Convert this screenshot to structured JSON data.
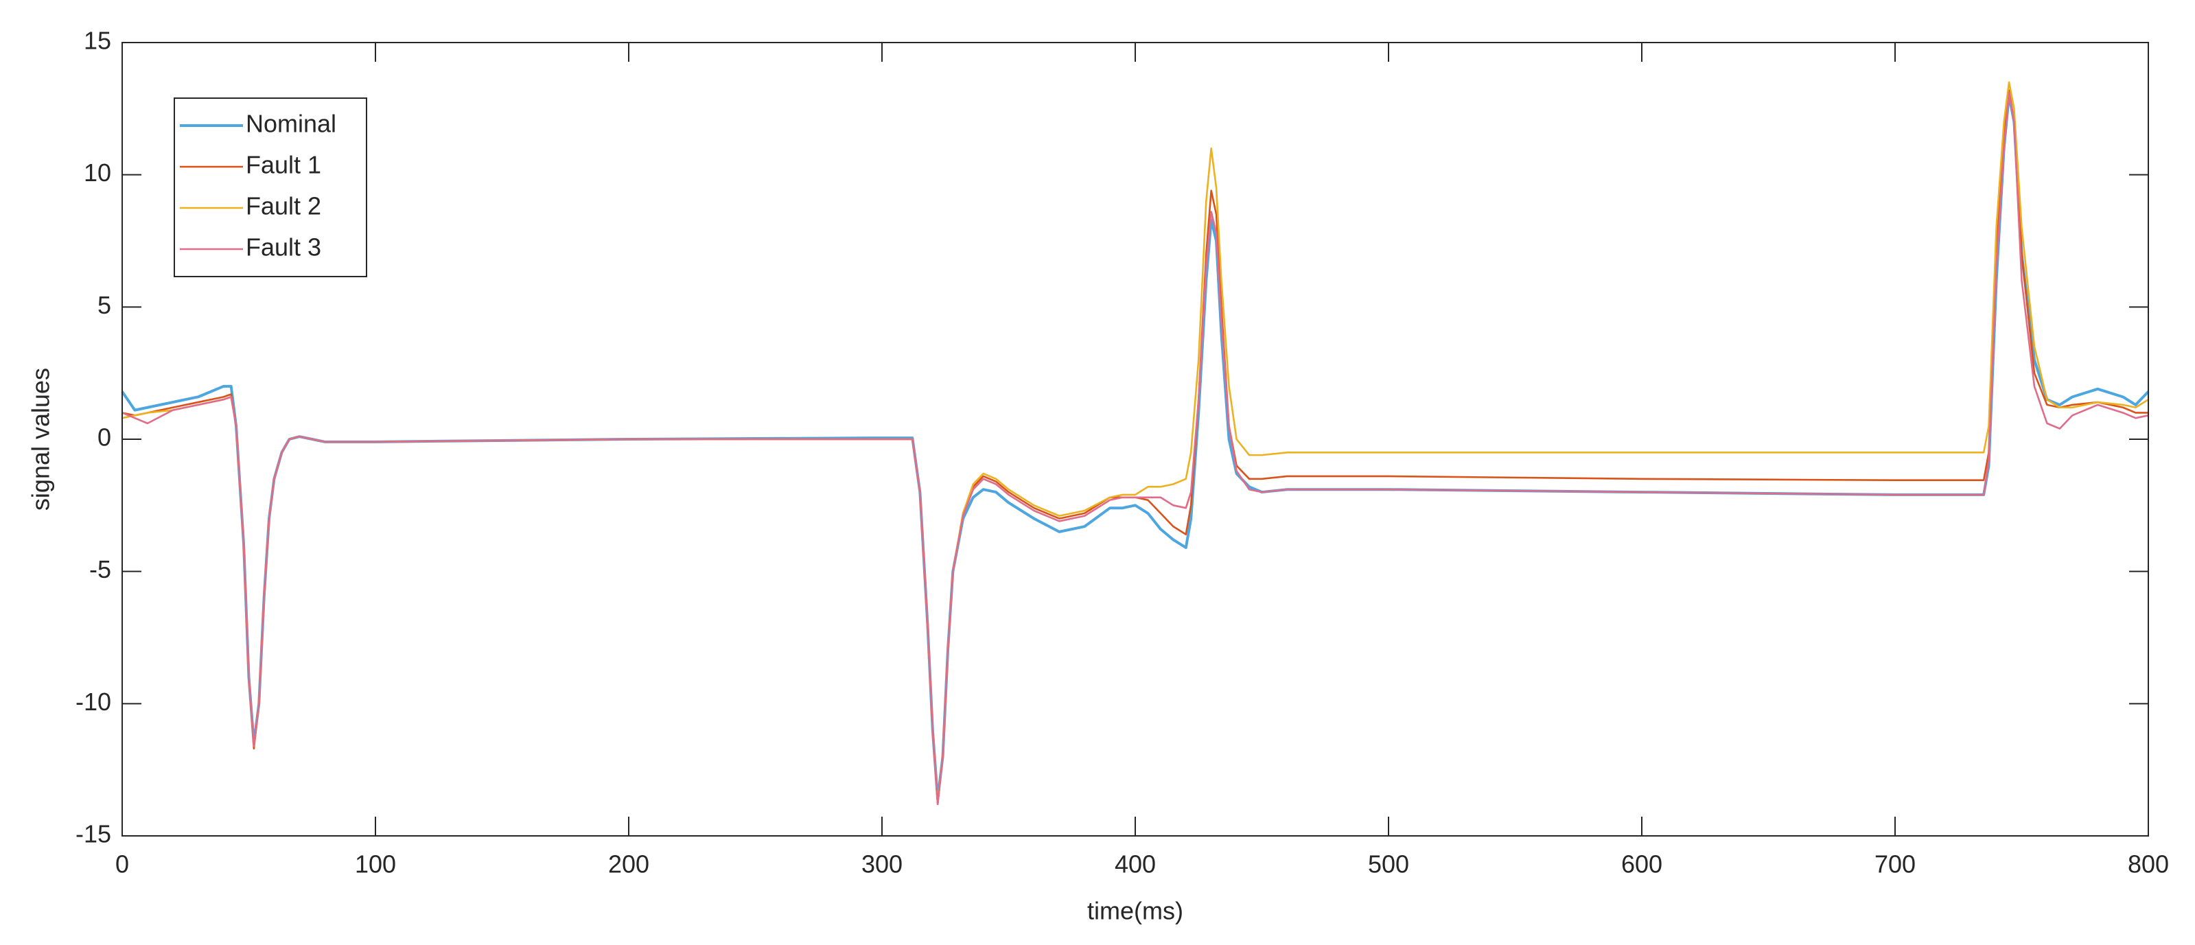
{
  "chart_data": {
    "type": "line",
    "xlabel": "time(ms)",
    "ylabel": "signal values",
    "x": [
      0,
      5,
      10,
      20,
      30,
      40,
      43,
      45,
      48,
      50,
      52,
      54,
      56,
      58,
      60,
      63,
      66,
      70,
      75,
      80,
      100,
      200,
      300,
      312,
      315,
      318,
      320,
      322,
      324,
      326,
      328,
      332,
      336,
      340,
      345,
      350,
      360,
      370,
      380,
      390,
      395,
      400,
      405,
      410,
      415,
      420,
      422,
      425,
      428,
      430,
      432,
      434,
      437,
      440,
      445,
      450,
      460,
      500,
      600,
      700,
      735,
      737,
      740,
      743,
      745,
      747,
      750,
      755,
      760,
      765,
      770,
      780,
      790,
      795,
      800
    ],
    "series": [
      {
        "name": "Nominal",
        "color": "#4da6e0",
        "values": [
          1.8,
          1.1,
          1.2,
          1.4,
          1.6,
          2.0,
          2.0,
          0.5,
          -4,
          -9,
          -11.5,
          -10,
          -6,
          -3,
          -1.5,
          -0.5,
          0,
          0.1,
          0,
          -0.1,
          -0.1,
          0,
          0.05,
          0.05,
          -2,
          -7,
          -11,
          -13.6,
          -12,
          -8,
          -5,
          -3,
          -2.2,
          -1.9,
          -2,
          -2.4,
          -3,
          -3.5,
          -3.3,
          -2.6,
          -2.6,
          -2.5,
          -2.8,
          -3.4,
          -3.8,
          -4.1,
          -3,
          1,
          6,
          8.3,
          7.5,
          4,
          0,
          -1.3,
          -1.8,
          -2.0,
          -1.9,
          -1.9,
          -2.0,
          -2.1,
          -2.1,
          -1,
          6,
          11,
          13,
          12,
          7,
          3,
          1.5,
          1.3,
          1.6,
          1.9,
          1.6,
          1.3,
          1.8
        ]
      },
      {
        "name": "Fault 1",
        "color": "#d95319",
        "values": [
          1.0,
          0.9,
          1.0,
          1.2,
          1.4,
          1.6,
          1.7,
          0.5,
          -4,
          -9,
          -11.7,
          -10,
          -6,
          -3,
          -1.5,
          -0.5,
          0,
          0.1,
          0,
          -0.1,
          -0.1,
          0,
          0,
          0,
          -2,
          -7,
          -11,
          -13.8,
          -12,
          -8,
          -5,
          -2.8,
          -1.8,
          -1.4,
          -1.6,
          -2.0,
          -2.6,
          -3.0,
          -2.8,
          -2.2,
          -2.2,
          -2.2,
          -2.3,
          -2.8,
          -3.3,
          -3.6,
          -2.5,
          1.5,
          7,
          9.4,
          8.5,
          5,
          0.5,
          -1,
          -1.5,
          -1.5,
          -1.4,
          -1.4,
          -1.5,
          -1.55,
          -1.55,
          -0.5,
          7,
          11.5,
          13.2,
          12,
          7,
          2.5,
          1.3,
          1.2,
          1.3,
          1.4,
          1.2,
          1.0,
          1.0
        ]
      },
      {
        "name": "Fault 2",
        "color": "#edb120",
        "values": [
          0.8,
          0.9,
          1.0,
          1.1,
          1.3,
          1.5,
          1.6,
          0.5,
          -4,
          -9,
          -11.6,
          -10,
          -6,
          -3,
          -1.5,
          -0.5,
          0,
          0.1,
          0,
          -0.1,
          -0.1,
          0,
          0,
          0,
          -2,
          -7,
          -11,
          -13.7,
          -12,
          -8,
          -5,
          -2.8,
          -1.7,
          -1.3,
          -1.5,
          -1.9,
          -2.5,
          -2.9,
          -2.7,
          -2.2,
          -2.1,
          -2.1,
          -1.8,
          -1.8,
          -1.7,
          -1.5,
          -0.5,
          3,
          9,
          11,
          9.5,
          6,
          2,
          0,
          -0.6,
          -0.6,
          -0.5,
          -0.5,
          -0.5,
          -0.5,
          -0.5,
          0.5,
          8,
          12,
          13.5,
          12.5,
          8,
          3.5,
          1.5,
          1.2,
          1.2,
          1.4,
          1.3,
          1.2,
          1.5
        ]
      },
      {
        "name": "Fault 3",
        "color": "#e06c8a",
        "values": [
          1.0,
          0.8,
          0.6,
          1.1,
          1.3,
          1.5,
          1.6,
          0.5,
          -4,
          -9,
          -11.6,
          -10,
          -6,
          -3,
          -1.5,
          -0.5,
          0,
          0.1,
          0,
          -0.1,
          -0.1,
          0,
          0,
          0,
          -2,
          -7,
          -11,
          -13.8,
          -12,
          -8,
          -5,
          -2.9,
          -1.9,
          -1.5,
          -1.7,
          -2.1,
          -2.7,
          -3.1,
          -2.9,
          -2.3,
          -2.2,
          -2.2,
          -2.2,
          -2.2,
          -2.5,
          -2.6,
          -2,
          1.5,
          6.5,
          8.6,
          7.8,
          4.5,
          0.5,
          -1.2,
          -1.9,
          -2.0,
          -1.9,
          -1.9,
          -2.0,
          -2.1,
          -2.1,
          -0.8,
          6.5,
          11,
          13.1,
          12,
          6,
          2,
          0.6,
          0.4,
          0.9,
          1.3,
          1.0,
          0.8,
          0.9
        ]
      }
    ],
    "xlim": [
      0,
      800
    ],
    "xticks": [
      0,
      100,
      200,
      300,
      400,
      500,
      600,
      700,
      800
    ],
    "ylim": [
      -15,
      15
    ],
    "yticks": [
      -15,
      -10,
      -5,
      0,
      5,
      10,
      15
    ],
    "legend": "upper left",
    "grid": false
  }
}
